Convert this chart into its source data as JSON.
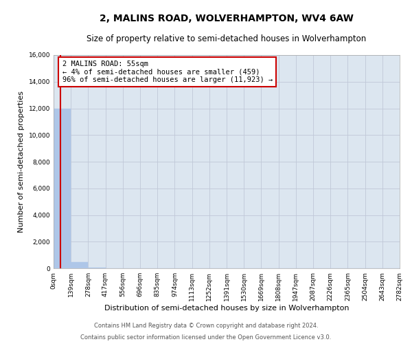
{
  "title": "2, MALINS ROAD, WOLVERHAMPTON, WV4 6AW",
  "subtitle": "Size of property relative to semi-detached houses in Wolverhampton",
  "xlabel": "Distribution of semi-detached houses by size in Wolverhampton",
  "ylabel": "Number of semi-detached properties",
  "bin_edges": [
    0,
    139,
    278,
    417,
    556,
    696,
    835,
    974,
    1113,
    1252,
    1391,
    1530,
    1669,
    1808,
    1947,
    2087,
    2226,
    2365,
    2504,
    2643,
    2782
  ],
  "bar_heights": [
    12000,
    450,
    50,
    20,
    15,
    10,
    8,
    5,
    4,
    3,
    3,
    2,
    2,
    2,
    1,
    1,
    1,
    1,
    1,
    1
  ],
  "bar_color": "#aec6e8",
  "bar_edgecolor": "#aec6e8",
  "property_size": 55,
  "property_line_color": "#cc0000",
  "annotation_line1": "2 MALINS ROAD: 55sqm",
  "annotation_line2": "← 4% of semi-detached houses are smaller (459)",
  "annotation_line3": "96% of semi-detached houses are larger (11,923) →",
  "annotation_box_edgecolor": "#cc0000",
  "annotation_box_facecolor": "#ffffff",
  "ylim": [
    0,
    16000
  ],
  "yticks": [
    0,
    2000,
    4000,
    6000,
    8000,
    10000,
    12000,
    14000,
    16000
  ],
  "grid_color": "#c0c8d8",
  "plot_bg_color": "#dce6f0",
  "footer_line1": "Contains HM Land Registry data © Crown copyright and database right 2024.",
  "footer_line2": "Contains public sector information licensed under the Open Government Licence v3.0.",
  "title_fontsize": 10,
  "subtitle_fontsize": 8.5,
  "tick_label_fontsize": 6.5,
  "ylabel_fontsize": 8,
  "xlabel_fontsize": 8,
  "annotation_fontsize": 7.5,
  "footer_fontsize": 6
}
